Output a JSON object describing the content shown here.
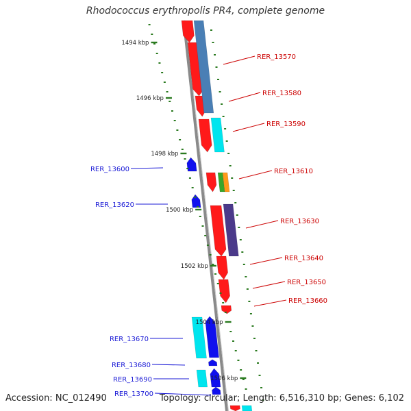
{
  "title": "Rhodococcus erythropolis PR4, complete genome",
  "footer": {
    "accession_label": "Accession:",
    "accession_value": "NC_012490",
    "topology_label": "Topology:",
    "topology_value": "circular",
    "length_label": "Length:",
    "length_value": "6,516,310 bp",
    "genes_label": "Genes:",
    "genes_value": "6,102"
  },
  "colors": {
    "backbone": "#8a8a8a",
    "kbp_tick": "#2a7a1f",
    "left_label": "#1a1ad6",
    "right_label": "#cc0000",
    "forward_gene": "#ff1a1a",
    "reverse_gene": "#1010ee",
    "cyan": "#00e5ee",
    "steel_blue": "#4a7fb5",
    "purple": "#4b3a8a",
    "green": "#3aa62a",
    "orange": "#ff9a1a"
  },
  "kbp_labels": [
    {
      "text": "1494 kbp"
    },
    {
      "text": "1496 kbp"
    },
    {
      "text": "1498 kbp"
    },
    {
      "text": "1500 kbp"
    },
    {
      "text": "1502 kbp"
    },
    {
      "text": "1504 kbp"
    },
    {
      "text": "1506 kbp"
    }
  ],
  "left_genes": [
    {
      "name": "RER_13600"
    },
    {
      "name": "RER_13620"
    },
    {
      "name": "RER_13670"
    },
    {
      "name": "RER_13680"
    },
    {
      "name": "RER_13690"
    },
    {
      "name": "RER_13700"
    }
  ],
  "right_genes": [
    {
      "name": "RER_13570"
    },
    {
      "name": "RER_13580"
    },
    {
      "name": "RER_13590"
    },
    {
      "name": "RER_13610"
    },
    {
      "name": "RER_13630"
    },
    {
      "name": "RER_13640"
    },
    {
      "name": "RER_13650"
    },
    {
      "name": "RER_13660"
    }
  ]
}
